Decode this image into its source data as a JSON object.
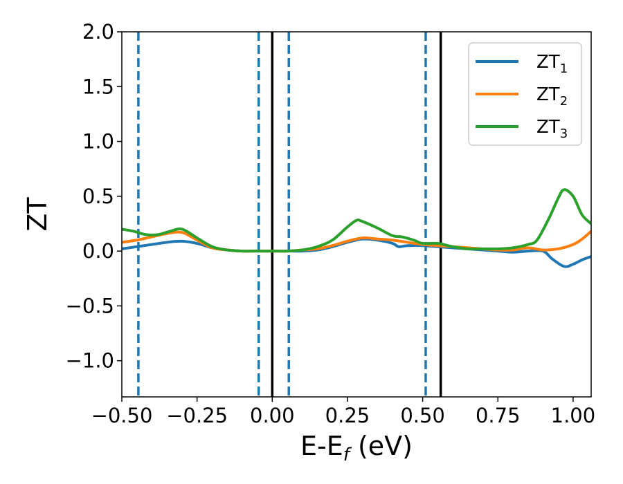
{
  "chart_data": {
    "type": "line",
    "xlabel": {
      "main": "E-E",
      "sub": "f",
      "suffix": " (eV)"
    },
    "ylabel": "ZT",
    "xlim": [
      -0.5,
      1.06
    ],
    "ylim": [
      -1.33,
      2.0
    ],
    "x_ticks": [
      -0.5,
      -0.25,
      0.0,
      0.25,
      0.5,
      0.75,
      1.0
    ],
    "x_tick_labels": [
      "−0.50",
      "−0.25",
      "0.00",
      "0.25",
      "0.50",
      "0.75",
      "1.00"
    ],
    "y_ticks": [
      -1.0,
      -0.5,
      0.0,
      0.5,
      1.0,
      1.5,
      2.0
    ],
    "y_tick_labels": [
      "−1.0",
      "−0.5",
      "0.0",
      "0.5",
      "1.0",
      "1.5",
      "2.0"
    ],
    "grid": false,
    "legend_position": "top-right",
    "vlines_solid": [
      0.0,
      0.56
    ],
    "vlines_dashed": [
      -0.445,
      -0.045,
      0.055,
      0.51
    ],
    "vline_solid_color": "#000000",
    "vline_dashed_color": "#1f77b4",
    "series": [
      {
        "name": "ZT1",
        "label_main": "ZT",
        "label_sub": "1",
        "color": "#1f77b4",
        "x": [
          -0.5,
          -0.45,
          -0.4,
          -0.35,
          -0.3,
          -0.25,
          -0.2,
          -0.15,
          -0.1,
          -0.05,
          0.0,
          0.05,
          0.1,
          0.15,
          0.2,
          0.25,
          0.3,
          0.35,
          0.4,
          0.42,
          0.45,
          0.5,
          0.55,
          0.6,
          0.65,
          0.7,
          0.75,
          0.8,
          0.85,
          0.9,
          0.93,
          0.97,
          1.0,
          1.03,
          1.06
        ],
        "y": [
          0.02,
          0.04,
          0.06,
          0.08,
          0.09,
          0.07,
          0.03,
          0.01,
          0.0,
          0.0,
          0.0,
          0.0,
          0.0,
          0.01,
          0.04,
          0.08,
          0.11,
          0.1,
          0.07,
          0.04,
          0.05,
          0.05,
          0.04,
          0.03,
          0.02,
          0.01,
          0.0,
          -0.01,
          0.0,
          0.0,
          -0.07,
          -0.14,
          -0.12,
          -0.08,
          -0.05
        ]
      },
      {
        "name": "ZT2",
        "label_main": "ZT",
        "label_sub": "2",
        "color": "#ff7f0e",
        "x": [
          -0.5,
          -0.45,
          -0.4,
          -0.35,
          -0.3,
          -0.25,
          -0.2,
          -0.15,
          -0.1,
          -0.05,
          0.0,
          0.05,
          0.1,
          0.15,
          0.2,
          0.25,
          0.3,
          0.35,
          0.4,
          0.45,
          0.5,
          0.55,
          0.6,
          0.65,
          0.7,
          0.75,
          0.8,
          0.85,
          0.9,
          0.95,
          1.0,
          1.03,
          1.06
        ],
        "y": [
          0.08,
          0.1,
          0.13,
          0.16,
          0.17,
          0.1,
          0.03,
          0.01,
          0.0,
          0.0,
          0.0,
          0.0,
          0.01,
          0.02,
          0.05,
          0.09,
          0.12,
          0.11,
          0.1,
          0.08,
          0.06,
          0.05,
          0.04,
          0.03,
          0.02,
          0.01,
          0.01,
          0.03,
          0.01,
          0.02,
          0.06,
          0.11,
          0.18
        ]
      },
      {
        "name": "ZT3",
        "label_main": "ZT",
        "label_sub": "3",
        "color": "#2ca02c",
        "x": [
          -0.5,
          -0.46,
          -0.42,
          -0.38,
          -0.34,
          -0.3,
          -0.25,
          -0.2,
          -0.15,
          -0.1,
          -0.05,
          0.0,
          0.05,
          0.1,
          0.15,
          0.2,
          0.25,
          0.28,
          0.3,
          0.35,
          0.4,
          0.43,
          0.47,
          0.5,
          0.55,
          0.6,
          0.65,
          0.7,
          0.75,
          0.8,
          0.85,
          0.88,
          0.92,
          0.95,
          0.97,
          1.0,
          1.03,
          1.06
        ],
        "y": [
          0.2,
          0.18,
          0.15,
          0.15,
          0.18,
          0.2,
          0.12,
          0.04,
          0.01,
          0.0,
          0.0,
          0.0,
          0.0,
          0.01,
          0.04,
          0.1,
          0.22,
          0.28,
          0.27,
          0.21,
          0.14,
          0.13,
          0.1,
          0.07,
          0.07,
          0.04,
          0.02,
          0.02,
          0.02,
          0.03,
          0.06,
          0.1,
          0.3,
          0.48,
          0.56,
          0.5,
          0.33,
          0.25
        ]
      }
    ]
  }
}
